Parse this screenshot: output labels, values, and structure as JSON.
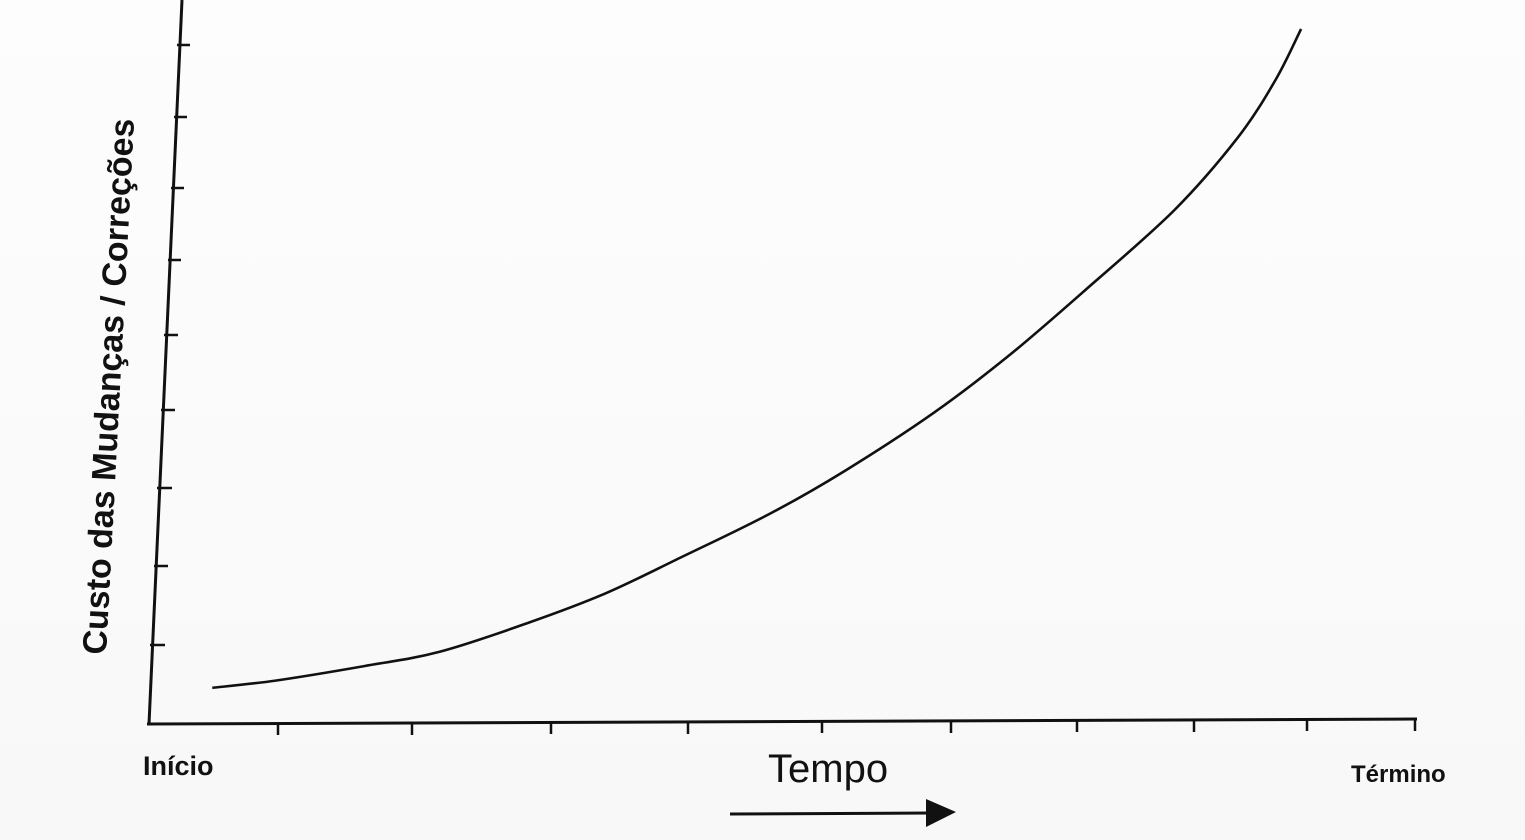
{
  "chart_data": {
    "type": "line",
    "title": "",
    "xlabel": "Tempo",
    "ylabel": "Custo das Mudanças / Correções",
    "x_start_label": "Início",
    "x_end_label": "Término",
    "x_range": [
      0,
      1
    ],
    "y_range": [
      0,
      1
    ],
    "grid": false,
    "legend": "none",
    "series": [
      {
        "points": [
          {
            "x": 0.05,
            "y": 0.05
          },
          {
            "x": 0.1,
            "y": 0.06
          },
          {
            "x": 0.17,
            "y": 0.08
          },
          {
            "x": 0.23,
            "y": 0.1
          },
          {
            "x": 0.3,
            "y": 0.14
          },
          {
            "x": 0.36,
            "y": 0.18
          },
          {
            "x": 0.42,
            "y": 0.23
          },
          {
            "x": 0.49,
            "y": 0.29
          },
          {
            "x": 0.55,
            "y": 0.35
          },
          {
            "x": 0.62,
            "y": 0.43
          },
          {
            "x": 0.68,
            "y": 0.51
          },
          {
            "x": 0.74,
            "y": 0.6
          },
          {
            "x": 0.81,
            "y": 0.71
          },
          {
            "x": 0.86,
            "y": 0.81
          },
          {
            "x": 0.89,
            "y": 0.89
          },
          {
            "x": 0.91,
            "y": 0.96
          }
        ]
      }
    ]
  }
}
